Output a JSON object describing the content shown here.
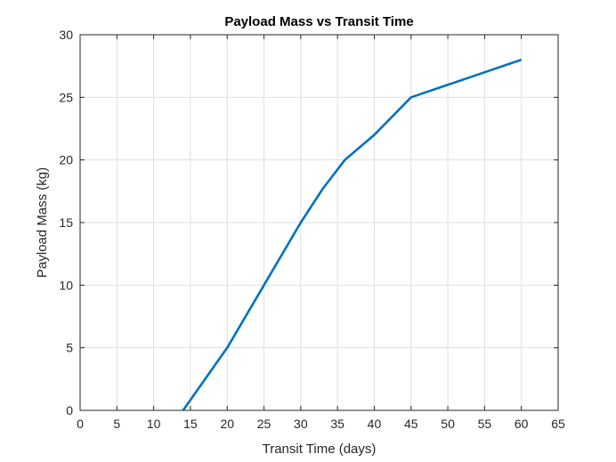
{
  "chart_data": {
    "type": "line",
    "title": "Payload Mass vs Transit Time",
    "xlabel": "Transit Time (days)",
    "ylabel": "Payload Mass (kg)",
    "xlim": [
      0,
      65
    ],
    "ylim": [
      0,
      30
    ],
    "xticks": [
      0,
      5,
      10,
      15,
      20,
      25,
      30,
      35,
      40,
      45,
      50,
      55,
      60,
      65
    ],
    "yticks": [
      0,
      5,
      10,
      15,
      20,
      25,
      30
    ],
    "grid": true,
    "series": [
      {
        "color": "#0072bd",
        "x": [
          14,
          20,
          25,
          30,
          33,
          36,
          40,
          45,
          50,
          55,
          60
        ],
        "y": [
          0,
          5,
          10,
          15,
          17.7,
          20,
          22,
          25,
          26,
          27,
          28
        ]
      }
    ]
  }
}
